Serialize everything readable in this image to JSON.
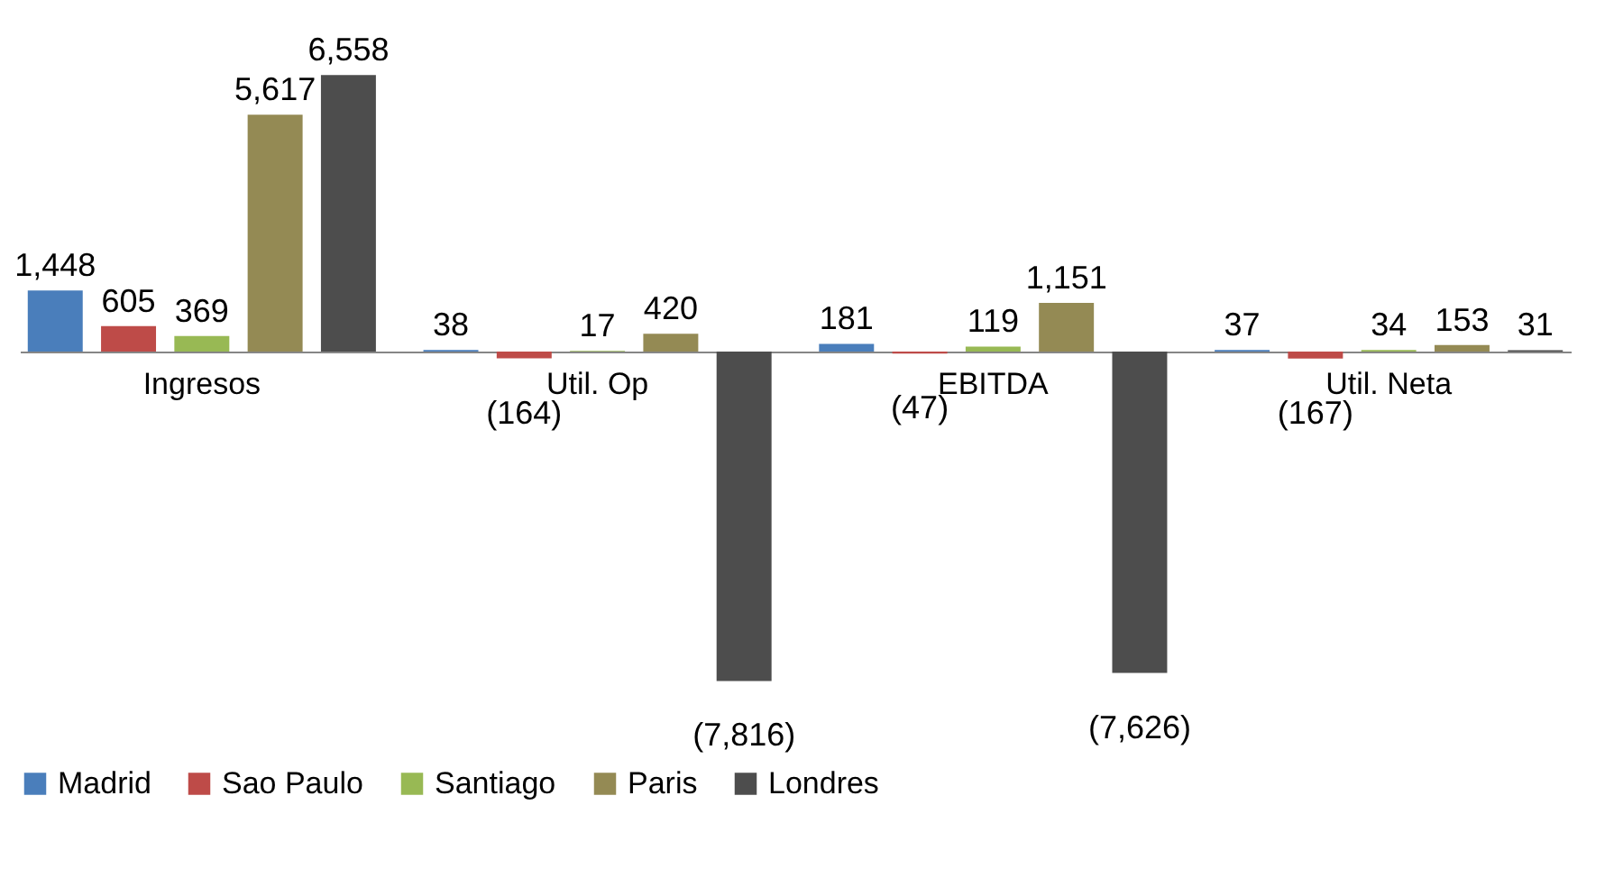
{
  "chart_data": {
    "type": "bar",
    "categories": [
      "Ingresos",
      "Util. Op",
      "EBITDA",
      "Util. Neta"
    ],
    "series": [
      {
        "name": "Madrid",
        "color": "#4a7ebb",
        "values": [
          1448,
          38,
          181,
          37
        ],
        "value_labels": [
          "1,448",
          "38",
          "181",
          "37"
        ]
      },
      {
        "name": "Sao Paulo",
        "color": "#be4b48",
        "values": [
          605,
          -164,
          -47,
          -167
        ],
        "value_labels": [
          "605",
          "(164)",
          "(47)",
          "(167)"
        ]
      },
      {
        "name": "Santiago",
        "color": "#98b954",
        "values": [
          369,
          17,
          119,
          34
        ],
        "value_labels": [
          "369",
          "17",
          "119",
          "34"
        ]
      },
      {
        "name": "Paris",
        "color": "#948a54",
        "values": [
          5617,
          420,
          1151,
          153
        ],
        "value_labels": [
          "5,617",
          "420",
          "1,151",
          "153"
        ]
      },
      {
        "name": "Londres",
        "color": "#4d4d4d",
        "values": [
          6558,
          -7816,
          -7626,
          31
        ],
        "value_labels": [
          "6,558",
          "(7,816)",
          "(7,626)",
          "31"
        ]
      }
    ],
    "legend": "bottom",
    "grid": false
  }
}
